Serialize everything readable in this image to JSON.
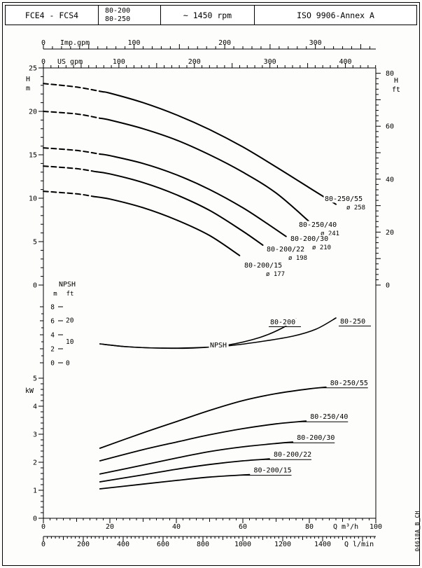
{
  "header": {
    "pump_type": "FCE4 - FCS4",
    "models": [
      "80-200",
      "80-250"
    ],
    "speed": "~ 1450 rpm",
    "standard": "ISO 9906-Annex A"
  },
  "doc_code": "04618A_B_CH",
  "chart_data": [
    {
      "type": "line",
      "title": "Head curves",
      "x": {
        "label": "Q m³/h",
        "min": 0,
        "max": 100,
        "ticks": [
          0,
          20,
          40,
          60,
          80,
          100
        ]
      },
      "x_secondary": [
        {
          "label": "Imp.gpm",
          "ticks": [
            0,
            100,
            200,
            300
          ],
          "m3h_per_unit": 0.27276
        },
        {
          "label": "US gpm",
          "ticks": [
            0,
            100,
            200,
            300,
            400
          ],
          "m3h_per_unit": 0.22712
        }
      ],
      "y_left": {
        "unit_lines": [
          "H",
          "m"
        ],
        "min": 0,
        "max": 25,
        "ticks": [
          0,
          5,
          10,
          15,
          20,
          25
        ]
      },
      "y_right": {
        "unit_lines": [
          "H",
          "ft"
        ],
        "ticks": [
          0,
          20,
          40,
          60,
          80
        ],
        "m_per_unit": 0.3048
      },
      "series": [
        {
          "name": "80-250/55",
          "impeller": "ø 258",
          "dash_until": 18,
          "points": [
            [
              0,
              23.2
            ],
            [
              10,
              22.8
            ],
            [
              20,
              22.1
            ],
            [
              30,
              21.0
            ],
            [
              40,
              19.6
            ],
            [
              50,
              17.9
            ],
            [
              60,
              15.9
            ],
            [
              70,
              13.6
            ],
            [
              80,
              11.2
            ],
            [
              88,
              9.3
            ]
          ]
        },
        {
          "name": "80-250/40",
          "impeller": "ø 241",
          "dash_until": 17,
          "points": [
            [
              0,
              20.0
            ],
            [
              10,
              19.7
            ],
            [
              20,
              19.0
            ],
            [
              30,
              18.0
            ],
            [
              40,
              16.7
            ],
            [
              50,
              15.0
            ],
            [
              60,
              13.0
            ],
            [
              70,
              10.6
            ],
            [
              80,
              7.3
            ]
          ]
        },
        {
          "name": "80-200/30",
          "impeller": "ø 210",
          "dash_until": 17,
          "points": [
            [
              0,
              15.8
            ],
            [
              10,
              15.5
            ],
            [
              20,
              14.9
            ],
            [
              30,
              14.0
            ],
            [
              40,
              12.7
            ],
            [
              50,
              11.0
            ],
            [
              60,
              8.9
            ],
            [
              68,
              6.9
            ],
            [
              73,
              5.6
            ]
          ]
        },
        {
          "name": "80-200/22",
          "impeller": "ø 198",
          "dash_until": 16,
          "points": [
            [
              0,
              13.7
            ],
            [
              10,
              13.4
            ],
            [
              20,
              12.8
            ],
            [
              30,
              11.8
            ],
            [
              40,
              10.4
            ],
            [
              50,
              8.6
            ],
            [
              60,
              6.2
            ],
            [
              66,
              4.6
            ]
          ]
        },
        {
          "name": "80-200/15",
          "impeller": "ø 177",
          "dash_until": 15,
          "points": [
            [
              0,
              10.8
            ],
            [
              10,
              10.5
            ],
            [
              20,
              9.9
            ],
            [
              30,
              8.9
            ],
            [
              40,
              7.5
            ],
            [
              50,
              5.7
            ],
            [
              59,
              3.4
            ]
          ]
        }
      ]
    },
    {
      "type": "line",
      "title": "NPSH",
      "annotation": "NPSH",
      "y": {
        "unit_m": "m",
        "unit_ft": "ft",
        "ticks_m": [
          0,
          2,
          4,
          6,
          8
        ],
        "ticks_ft": [
          0,
          10,
          20
        ],
        "m_per_ft": 0.3048
      },
      "series": [
        {
          "name": "80-200",
          "points": [
            [
              17,
              2.7
            ],
            [
              25,
              2.3
            ],
            [
              35,
              2.1
            ],
            [
              45,
              2.1
            ],
            [
              55,
              2.5
            ],
            [
              65,
              3.6
            ],
            [
              72,
              5.0
            ],
            [
              76,
              6.3
            ]
          ]
        },
        {
          "name": "80-250",
          "points": [
            [
              17,
              2.7
            ],
            [
              25,
              2.3
            ],
            [
              35,
              2.1
            ],
            [
              45,
              2.15
            ],
            [
              55,
              2.4
            ],
            [
              65,
              3.0
            ],
            [
              75,
              3.8
            ],
            [
              82,
              4.8
            ],
            [
              88,
              6.4
            ]
          ]
        }
      ]
    },
    {
      "type": "line",
      "title": "Power",
      "y": {
        "unit": "kW",
        "min": 0,
        "max": 5,
        "ticks": [
          0,
          1,
          2,
          3,
          4,
          5
        ]
      },
      "x": {
        "label": "Q m³/h",
        "ticks": [
          0,
          20,
          40,
          60,
          80,
          100
        ]
      },
      "x_secondary": {
        "label": "Q l/min",
        "ticks": [
          0,
          200,
          400,
          600,
          800,
          1000,
          1200,
          1400
        ],
        "m3h_per_unit": 0.06
      },
      "series": [
        {
          "name": "80-250/55",
          "points": [
            [
              17,
              2.5
            ],
            [
              30,
              3.05
            ],
            [
              40,
              3.45
            ],
            [
              50,
              3.85
            ],
            [
              60,
              4.2
            ],
            [
              70,
              4.45
            ],
            [
              80,
              4.62
            ],
            [
              85,
              4.68
            ]
          ]
        },
        {
          "name": "80-250/40",
          "points": [
            [
              17,
              2.05
            ],
            [
              30,
              2.45
            ],
            [
              40,
              2.72
            ],
            [
              50,
              2.98
            ],
            [
              60,
              3.2
            ],
            [
              70,
              3.37
            ],
            [
              79,
              3.47
            ]
          ]
        },
        {
          "name": "80-200/30",
          "points": [
            [
              17,
              1.58
            ],
            [
              30,
              1.9
            ],
            [
              40,
              2.15
            ],
            [
              50,
              2.38
            ],
            [
              60,
              2.55
            ],
            [
              70,
              2.67
            ],
            [
              75,
              2.72
            ]
          ]
        },
        {
          "name": "80-200/22",
          "points": [
            [
              17,
              1.3
            ],
            [
              30,
              1.55
            ],
            [
              40,
              1.75
            ],
            [
              50,
              1.92
            ],
            [
              60,
              2.05
            ],
            [
              68,
              2.12
            ]
          ]
        },
        {
          "name": "80-200/15",
          "points": [
            [
              17,
              1.05
            ],
            [
              30,
              1.22
            ],
            [
              40,
              1.35
            ],
            [
              50,
              1.47
            ],
            [
              62,
              1.56
            ]
          ]
        }
      ]
    }
  ]
}
